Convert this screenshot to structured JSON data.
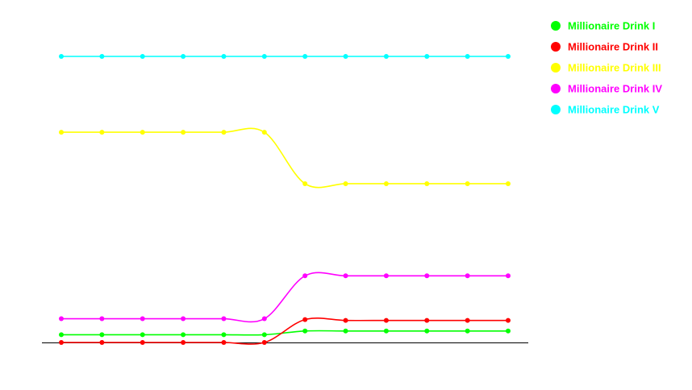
{
  "chart_data": {
    "type": "line",
    "title": "",
    "xlabel": "",
    "ylabel": "",
    "x": [
      1,
      2,
      3,
      4,
      5,
      6,
      7,
      8,
      9,
      10,
      11,
      12
    ],
    "ylim": [
      0,
      1000
    ],
    "grid": false,
    "smooth": true,
    "legend_position": "top-right",
    "series": [
      {
        "name": "Millionaire Drink I",
        "color": "#00ff00",
        "values": [
          27,
          27,
          27,
          27,
          27,
          27,
          40,
          40,
          40,
          40,
          40,
          40
        ]
      },
      {
        "name": "Millionaire Drink II",
        "color": "#ff0000",
        "values": [
          0,
          0,
          0,
          0,
          0,
          0,
          80,
          77,
          77,
          77,
          77,
          77
        ]
      },
      {
        "name": "Millionaire Drink III",
        "color": "#ffff00",
        "values": [
          735,
          735,
          735,
          735,
          735,
          735,
          555,
          555,
          555,
          555,
          555,
          555
        ]
      },
      {
        "name": "Millionaire Drink IV",
        "color": "#ff00ff",
        "values": [
          83,
          83,
          83,
          83,
          83,
          83,
          233,
          233,
          233,
          233,
          233,
          233
        ]
      },
      {
        "name": "Millionaire Drink V",
        "color": "#00ffff",
        "values": [
          1000,
          1000,
          1000,
          1000,
          1000,
          1000,
          1000,
          1000,
          1000,
          1000,
          1000,
          1000
        ]
      }
    ]
  }
}
